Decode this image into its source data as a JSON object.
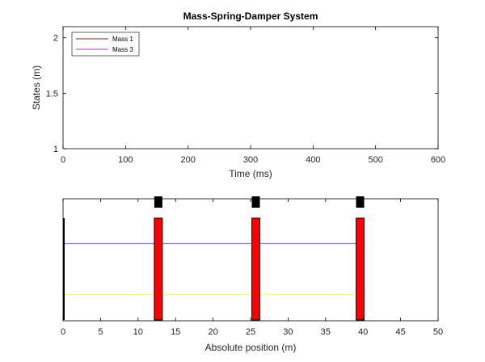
{
  "chart_data": [
    {
      "type": "line",
      "title": "Mass-Spring-Damper System",
      "xlabel": "Time (ms)",
      "ylabel": "States (m)",
      "xlim": [
        0,
        600
      ],
      "ylim": [
        1,
        2.1
      ],
      "xticks": [
        0,
        100,
        200,
        300,
        400,
        500,
        600
      ],
      "yticks": [
        1,
        1.5,
        2
      ],
      "legend_position": "top-left",
      "series": [
        {
          "name": "Mass 1",
          "color": "#7f1f2f",
          "x": [],
          "y": []
        },
        {
          "name": "Mass 3",
          "color": "#b040b0",
          "x": [],
          "y": []
        }
      ]
    },
    {
      "type": "diagram",
      "xlabel": "Absolute position (m)",
      "xlim": [
        0,
        50
      ],
      "xticks": [
        0,
        5,
        10,
        15,
        20,
        25,
        30,
        35,
        40,
        45,
        50
      ],
      "wall_position": 0,
      "masses": [
        {
          "position": 12.7,
          "color": "#ff0000"
        },
        {
          "position": 25.7,
          "color": "#ff0000"
        },
        {
          "position": 39.6,
          "color": "#ff0000"
        }
      ],
      "lines": [
        {
          "color": "#7b7bd6",
          "level": 0.75,
          "from": 0,
          "to": 39.6
        },
        {
          "color": "#ffff7a",
          "level": 0.25,
          "from": 0,
          "to": 39.6
        }
      ]
    }
  ]
}
